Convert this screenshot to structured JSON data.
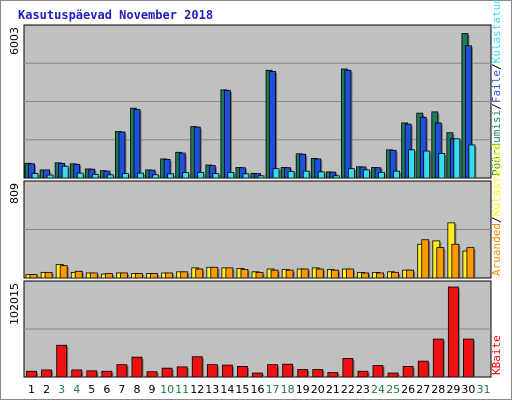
{
  "chart_data": {
    "type": "bar",
    "title": "Kasutuspäevad November 2018",
    "categories": [
      "1",
      "2",
      "3",
      "4",
      "5",
      "6",
      "7",
      "8",
      "9",
      "10",
      "11",
      "12",
      "13",
      "14",
      "15",
      "16",
      "17",
      "18",
      "19",
      "20",
      "21",
      "22",
      "23",
      "24",
      "25",
      "26",
      "27",
      "28",
      "29",
      "30",
      "31"
    ],
    "weekend_days": [
      "3",
      "4",
      "10",
      "11",
      "17",
      "18",
      "24",
      "25",
      "31"
    ],
    "colors": {
      "background": "#c0c0c0",
      "weekday_label": "#000000",
      "weekend_label": "#1d7a3a",
      "title": "#1f1fbf",
      "gridline": "#888888"
    },
    "panels": [
      {
        "name": "top",
        "ymax_label": "6003",
        "ymax": 6003,
        "legend": [
          {
            "label": "Pöördumisi",
            "color": "#1f8f5f"
          },
          {
            "label": "Faile",
            "color": "#2255ee"
          },
          {
            "label": "Külastatud lehti",
            "color": "#33ddee"
          }
        ],
        "legend_separator": "/",
        "series": [
          {
            "name": "Pöördumisi",
            "color": "#1a7a5a",
            "values": [
              600,
              330,
              620,
              580,
              370,
              300,
              1900,
              2850,
              330,
              780,
              1050,
              2100,
              530,
              3600,
              430,
              190,
              4400,
              430,
              990,
              800,
              250,
              4450,
              460,
              430,
              1150,
              2250,
              2650,
              2700,
              1850,
              5900,
              0
            ]
          },
          {
            "name": "Faile",
            "color": "#1e4fe0",
            "values": [
              580,
              330,
              600,
              560,
              360,
              280,
              1880,
              2800,
              320,
              760,
              1020,
              2080,
              510,
              3580,
              420,
              180,
              4350,
              420,
              970,
              780,
              240,
              4400,
              450,
              420,
              1130,
              2200,
              2480,
              2250,
              1600,
              5400,
              0
            ]
          },
          {
            "name": "Külastatud lehti",
            "color": "#33ddee",
            "values": [
              180,
              120,
              480,
              200,
              150,
              130,
              180,
              200,
              130,
              170,
              220,
              230,
              180,
              230,
              170,
              90,
              380,
              270,
              280,
              250,
              90,
              380,
              330,
              230,
              280,
              1150,
              1100,
              1000,
              1600,
              1350,
              0
            ]
          }
        ]
      },
      {
        "name": "middle",
        "ymax_label": "809",
        "ymax": 809,
        "legend": [
          {
            "label": "Aruanded",
            "color": "#ff8800"
          },
          {
            "label": "Külastajaid",
            "color": "#ffff00"
          }
        ],
        "legend_separator": "/",
        "series": [
          {
            "name": "Külastajaid",
            "color": "#ffee22",
            "values": [
              30,
              50,
              120,
              50,
              45,
              35,
              45,
              40,
              40,
              45,
              55,
              90,
              95,
              90,
              85,
              55,
              80,
              75,
              80,
              90,
              75,
              80,
              50,
              50,
              55,
              70,
              300,
              330,
              490,
              240,
              0
            ]
          },
          {
            "name": "Aruanded",
            "color": "#ff9900",
            "values": [
              30,
              50,
              110,
              60,
              45,
              40,
              45,
              40,
              40,
              45,
              55,
              80,
              95,
              90,
              75,
              50,
              70,
              70,
              80,
              80,
              70,
              80,
              45,
              45,
              50,
              70,
              340,
              270,
              300,
              270,
              0
            ]
          }
        ]
      },
      {
        "name": "bottom",
        "ymax_label": "102015",
        "ymax": 102015,
        "legend": [
          {
            "label": "KBaite",
            "color": "#ff0000"
          }
        ],
        "series": [
          {
            "name": "KBaite",
            "color": "#ee1111",
            "values": [
              6500,
              8000,
              36000,
              8000,
              7000,
              6500,
              14000,
              22500,
              6000,
              10000,
              11500,
              23000,
              14000,
              13500,
              12000,
              4500,
              14000,
              14500,
              8500,
              8500,
              5000,
              21000,
              6500,
              13000,
              4500,
              12000,
              18000,
              43000,
              102015,
              43000,
              0
            ]
          }
        ]
      }
    ]
  }
}
